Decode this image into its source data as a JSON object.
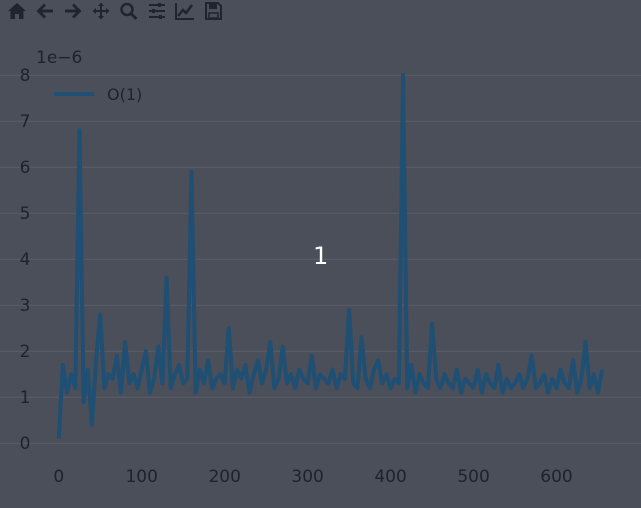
{
  "toolbar": {
    "items": [
      {
        "name": "home-icon"
      },
      {
        "name": "back-icon"
      },
      {
        "name": "forward-icon"
      },
      {
        "name": "pan-icon"
      },
      {
        "name": "zoom-icon"
      },
      {
        "name": "configure-subplots-icon"
      },
      {
        "name": "edit-axis-icon"
      },
      {
        "name": "save-icon"
      }
    ]
  },
  "overlay_label": "1",
  "colors": {
    "background": "#4b4f5a",
    "series": "#1f4f72",
    "text": "#1f2229",
    "grid": "#5a5f6b"
  },
  "chart_data": {
    "type": "line",
    "title": "",
    "xlabel": "",
    "ylabel": "",
    "offset_text": "1e−6",
    "xlim": [
      -25,
      650
    ],
    "ylim": [
      -0.3,
      8.2
    ],
    "xticks": [
      0,
      100,
      200,
      300,
      400,
      500,
      600
    ],
    "xtick_labels": [
      "0",
      "100",
      "200",
      "300",
      "400",
      "500",
      "600"
    ],
    "yticks": [
      0,
      1,
      2,
      3,
      4,
      5,
      6,
      7,
      8
    ],
    "ytick_labels": [
      "0",
      "1",
      "2",
      "3",
      "4",
      "5",
      "6",
      "7",
      "8"
    ],
    "grid": true,
    "legend_position": "top-left",
    "series": [
      {
        "name": "O(1)",
        "x_start": 0,
        "x_step": 5,
        "values": [
          0.1,
          1.7,
          1.1,
          1.5,
          1.2,
          6.8,
          0.9,
          1.6,
          0.4,
          1.8,
          2.8,
          1.2,
          1.5,
          1.4,
          1.9,
          1.1,
          2.2,
          1.3,
          1.5,
          1.2,
          1.6,
          2.0,
          1.1,
          1.4,
          2.1,
          1.3,
          3.6,
          1.2,
          1.5,
          1.7,
          1.3,
          1.4,
          5.9,
          1.1,
          1.6,
          1.3,
          1.8,
          1.2,
          1.4,
          1.5,
          1.3,
          2.5,
          1.2,
          1.6,
          1.4,
          1.7,
          1.1,
          1.5,
          1.8,
          1.3,
          1.6,
          2.2,
          1.2,
          1.4,
          2.1,
          1.3,
          1.5,
          1.2,
          1.6,
          1.4,
          1.3,
          1.9,
          1.2,
          1.5,
          1.4,
          1.3,
          1.6,
          1.2,
          1.5,
          1.4,
          2.9,
          1.3,
          1.2,
          2.3,
          1.4,
          1.2,
          1.6,
          1.8,
          1.3,
          1.5,
          1.2,
          1.4,
          1.3,
          8.0,
          1.2,
          1.7,
          1.1,
          1.5,
          1.3,
          1.2,
          2.6,
          1.4,
          1.2,
          1.5,
          1.3,
          1.2,
          1.6,
          1.1,
          1.4,
          1.3,
          1.2,
          1.6,
          1.1,
          1.5,
          1.3,
          1.2,
          1.7,
          1.1,
          1.4,
          1.2,
          1.3,
          1.5,
          1.2,
          1.4,
          1.9,
          1.2,
          1.3,
          1.5,
          1.1,
          1.4,
          1.2,
          1.6,
          1.3,
          1.2,
          1.8,
          1.1,
          1.4,
          2.2,
          1.2,
          1.5,
          1.1,
          1.6
        ]
      }
    ]
  }
}
